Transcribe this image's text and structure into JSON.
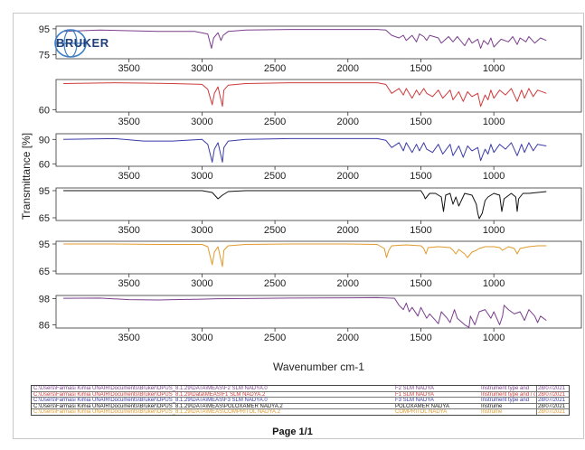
{
  "chart_data": {
    "type": "line",
    "xlabel": "Wavenumber cm-1",
    "ylabel": "Transmittance [%]",
    "x_reversed": true,
    "xlim": [
      4000,
      400
    ],
    "x_ticks": [
      3500,
      3000,
      2500,
      2000,
      1500,
      1000
    ],
    "panels": [
      {
        "color": "#7a3f8c",
        "yticks": [
          95,
          75
        ],
        "ylim": [
          72,
          97
        ],
        "x": [
          3950,
          3700,
          3500,
          3300,
          3050,
          2960,
          2935,
          2920,
          2890,
          2870,
          2855,
          2820,
          2700,
          2400,
          2100,
          1800,
          1740,
          1700,
          1650,
          1620,
          1600,
          1560,
          1530,
          1510,
          1480,
          1460,
          1440,
          1380,
          1360,
          1310,
          1280,
          1250,
          1200,
          1170,
          1150,
          1110,
          1090,
          1070,
          1040,
          1020,
          1000,
          950,
          900,
          870,
          840,
          820,
          780,
          760,
          720,
          680,
          640
        ],
        "y": [
          93,
          94,
          93.5,
          93,
          93,
          91,
          80,
          88,
          92,
          86,
          90,
          93,
          94,
          94.5,
          94.5,
          94.5,
          94,
          90,
          88,
          90,
          86,
          90,
          85,
          91,
          89,
          86,
          90,
          88,
          84,
          89,
          85,
          89,
          82,
          88,
          84,
          87,
          80,
          86,
          83,
          88,
          81,
          87,
          85,
          89,
          83,
          88,
          85,
          89,
          84,
          88,
          86
        ]
      },
      {
        "color": "#cf3a3a",
        "yticks": [
          60
        ],
        "ylim": [
          57,
          97
        ],
        "x": [
          3950,
          3600,
          3400,
          3200,
          3000,
          2960,
          2930,
          2915,
          2890,
          2860,
          2850,
          2820,
          2700,
          2400,
          2000,
          1800,
          1740,
          1700,
          1650,
          1620,
          1600,
          1560,
          1530,
          1510,
          1480,
          1460,
          1420,
          1380,
          1350,
          1300,
          1280,
          1240,
          1210,
          1180,
          1150,
          1110,
          1090,
          1060,
          1040,
          1020,
          1000,
          960,
          920,
          880,
          840,
          810,
          790,
          760,
          730,
          700,
          640
        ],
        "y": [
          92,
          93,
          92.5,
          92,
          91,
          85,
          66,
          80,
          88,
          64,
          84,
          90,
          92,
          93,
          93,
          93,
          91,
          80,
          86,
          78,
          86,
          74,
          84,
          78,
          86,
          80,
          76,
          84,
          74,
          84,
          72,
          82,
          70,
          82,
          76,
          80,
          64,
          78,
          72,
          84,
          74,
          84,
          78,
          86,
          70,
          84,
          74,
          86,
          76,
          84,
          80
        ]
      },
      {
        "color": "#3b3ba8",
        "yticks": [
          90,
          60
        ],
        "ylim": [
          57,
          97
        ],
        "x": [
          3950,
          3600,
          3400,
          3200,
          3000,
          2960,
          2930,
          2915,
          2890,
          2860,
          2850,
          2820,
          2700,
          2400,
          2000,
          1800,
          1740,
          1700,
          1650,
          1620,
          1600,
          1560,
          1530,
          1510,
          1480,
          1460,
          1420,
          1380,
          1350,
          1300,
          1280,
          1240,
          1210,
          1180,
          1150,
          1110,
          1090,
          1060,
          1040,
          1020,
          1000,
          960,
          920,
          880,
          840,
          810,
          790,
          760,
          730,
          700,
          640
        ],
        "y": [
          90,
          91,
          88,
          88,
          90,
          84,
          62,
          78,
          86,
          62,
          80,
          88,
          90,
          91,
          91,
          91,
          89,
          80,
          86,
          76,
          86,
          74,
          84,
          76,
          86,
          78,
          74,
          84,
          72,
          84,
          70,
          82,
          68,
          82,
          76,
          80,
          64,
          78,
          72,
          84,
          74,
          84,
          78,
          86,
          70,
          84,
          74,
          86,
          76,
          84,
          82
        ]
      },
      {
        "color": "#111111",
        "yticks": [
          95,
          65
        ],
        "ylim": [
          62,
          98
        ],
        "x": [
          3950,
          3600,
          3300,
          3000,
          2930,
          2890,
          2860,
          2820,
          2700,
          2400,
          2000,
          1800,
          1500,
          1480,
          1470,
          1440,
          1400,
          1360,
          1345,
          1330,
          1300,
          1280,
          1260,
          1240,
          1200,
          1150,
          1120,
          1110,
          1100,
          1080,
          1060,
          1040,
          1000,
          960,
          945,
          930,
          880,
          850,
          840,
          830,
          800,
          760,
          700,
          640
        ],
        "y": [
          95,
          95,
          95,
          95,
          93,
          86,
          90,
          94,
          95,
          95,
          95,
          95,
          95,
          90,
          86,
          92,
          92,
          88,
          72,
          90,
          92,
          80,
          88,
          78,
          92,
          90,
          80,
          70,
          64,
          70,
          84,
          88,
          92,
          90,
          72,
          86,
          92,
          88,
          72,
          86,
          92,
          92,
          93,
          94
        ]
      },
      {
        "color": "#e29a2c",
        "yticks": [
          95,
          65
        ],
        "ylim": [
          62,
          98
        ],
        "x": [
          3950,
          3600,
          3300,
          3000,
          2960,
          2930,
          2915,
          2890,
          2860,
          2850,
          2820,
          2700,
          2400,
          2000,
          1800,
          1750,
          1735,
          1720,
          1700,
          1600,
          1500,
          1480,
          1465,
          1450,
          1380,
          1300,
          1280,
          1260,
          1240,
          1200,
          1180,
          1150,
          1120,
          1100,
          1060,
          1000,
          960,
          940,
          900,
          860,
          840,
          820,
          760,
          700,
          640
        ],
        "y": [
          95,
          95,
          94.5,
          94.5,
          92,
          72,
          86,
          92,
          70,
          88,
          93,
          94.5,
          95,
          95,
          94.5,
          90,
          80,
          88,
          93,
          94,
          93,
          90,
          84,
          91,
          92,
          91,
          88,
          84,
          89,
          84,
          80,
          86,
          88,
          90,
          92,
          92,
          91,
          88,
          92,
          90,
          84,
          90,
          92,
          93,
          93
        ]
      },
      {
        "color": "#7a3f8c",
        "yticks": [
          98,
          86
        ],
        "ylim": [
          84.5,
          99.5
        ],
        "x": [
          3950,
          3700,
          3500,
          3300,
          3200,
          3000,
          2900,
          2700,
          2400,
          2000,
          1800,
          1680,
          1650,
          1620,
          1600,
          1580,
          1560,
          1520,
          1500,
          1460,
          1440,
          1400,
          1380,
          1360,
          1320,
          1300,
          1270,
          1250,
          1200,
          1170,
          1160,
          1130,
          1100,
          1060,
          1020,
          1000,
          960,
          940,
          930,
          900,
          860,
          820,
          790,
          760,
          720,
          700,
          680,
          640
        ],
        "y": [
          98.2,
          98.3,
          97.6,
          97.4,
          97.6,
          97.8,
          98,
          98.1,
          98.3,
          98.4,
          98.5,
          98.2,
          95,
          93,
          96,
          92,
          94,
          90,
          94,
          89,
          91,
          88,
          86.5,
          92,
          89,
          87,
          93,
          89,
          86,
          84.8,
          90,
          86,
          92,
          93,
          89,
          92,
          86,
          90,
          95,
          93,
          91,
          92,
          88,
          93,
          90,
          87,
          90,
          88
        ]
      }
    ]
  },
  "legend": {
    "rows": [
      {
        "path": "C:\\Users\\Farmasi Kimia UNAIR\\Documents\\Bruker\\OPUS_8.1.29\\DATA\\MEAS\\F2 SLM NADYA.0",
        "name": "F2 SLM NADYA",
        "desc": "Instrument type and",
        "date": "28/07/2021",
        "color": "#7a3f8c"
      },
      {
        "path": "C:\\Users\\Farmasi Kimia UNAIR\\Documents\\Bruker\\OPUS_8.1.29\\Data\\MEAS\\F1 SLM NADYA.2",
        "name": "F1 SLM NADYA",
        "desc": "Instrument type and / c",
        "date": "28/07/2021",
        "color": "#cf3a3a"
      },
      {
        "path": "C:\\Users\\Farmasi Kimia UNAIR\\Documents\\Bruker\\OPUS_8.1.29\\DATA\\MEAS\\F3 SLM NADYA.0",
        "name": "F3 SLM NADYA",
        "desc": "Instrument type and",
        "date": "28/07/2021",
        "color": "#3b3ba8"
      },
      {
        "path": "C:\\Users\\Farmasi Kimia UNAIR\\Documents\\Bruker\\OPUS_8.1.29\\DATA\\MEAS\\POLOXAMER NADYA.2",
        "name": "POLOXAMER NADYA",
        "desc": "Instrume",
        "date": "28/07/2021",
        "color": "#111111"
      },
      {
        "path": "C:\\Users\\Farmasi Kimia UNAIR\\Documents\\Bruker\\OPUS_8.1.29\\DATA\\MEAS\\COMPRITOL NADYA.2",
        "name": "COMPRITOL NADYA",
        "desc": "Instrume",
        "date": "28/07/2021",
        "color": "#e29a2c"
      },
      {
        "path": "C:\\Users\\Farmasi Kimia UNAIR\\Documents\\Bruker\\OPUS_8.1.29\\Data\\MEAS\\Quercetin.0",
        "name": "Quercetin",
        "desc": "Instrument type and / or accessory",
        "date": "22/04/2021",
        "color": "#7a3f8c"
      }
    ]
  },
  "logo": {
    "text": "BRUKER"
  },
  "footer": {
    "page": "Page 1/1"
  }
}
